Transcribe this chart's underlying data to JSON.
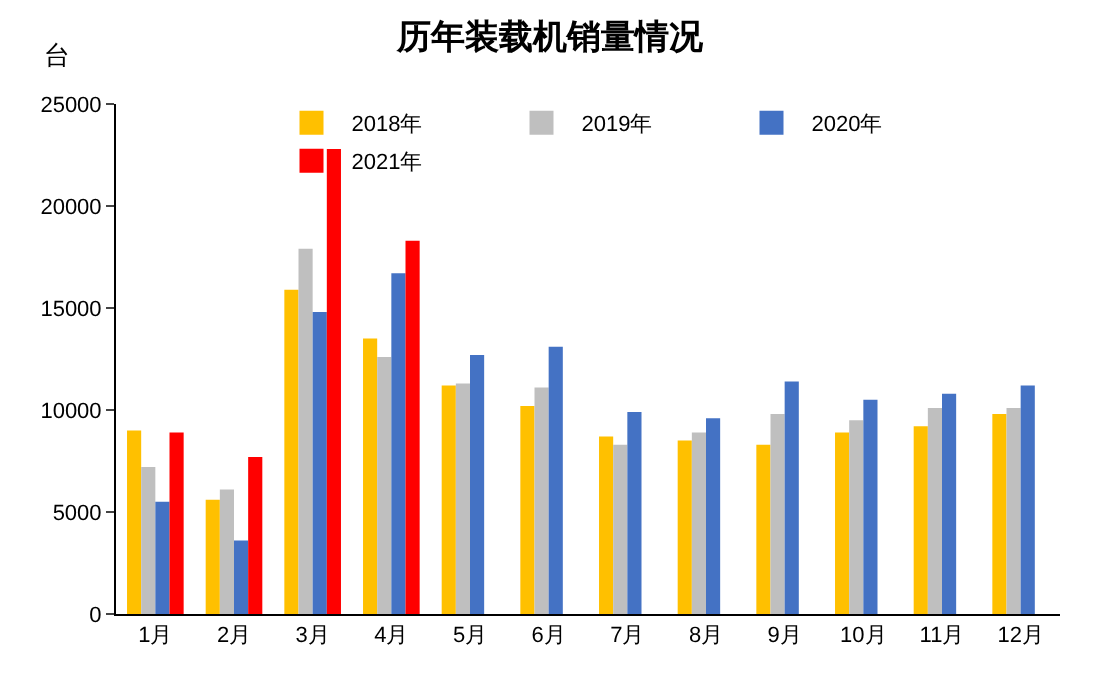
{
  "chart_data": {
    "type": "bar",
    "title": "历年装载机销量情况",
    "ylabel": "台",
    "categories": [
      "1月",
      "2月",
      "3月",
      "4月",
      "5月",
      "6月",
      "7月",
      "8月",
      "9月",
      "10月",
      "11月",
      "12月"
    ],
    "series": [
      {
        "name": "2018年",
        "color": "#ffc000",
        "values": [
          9000,
          5600,
          15900,
          13500,
          11200,
          10200,
          8700,
          8500,
          8300,
          8900,
          9200,
          9800
        ]
      },
      {
        "name": "2019年",
        "color": "#bfbfbf",
        "values": [
          7200,
          6100,
          17900,
          12600,
          11300,
          11100,
          8300,
          8900,
          9800,
          9500,
          10100,
          10100
        ]
      },
      {
        "name": "2020年",
        "color": "#4472c4",
        "values": [
          5500,
          3600,
          14800,
          16700,
          12700,
          13100,
          9900,
          9600,
          11400,
          10500,
          10800,
          11200
        ]
      },
      {
        "name": "2021年",
        "color": "#ff0000",
        "values": [
          8900,
          7700,
          22800,
          18300,
          null,
          null,
          null,
          null,
          null,
          null,
          null,
          null
        ]
      }
    ],
    "ylim": [
      0,
      25000
    ],
    "yticks": [
      0,
      5000,
      10000,
      15000,
      20000,
      25000
    ],
    "legend": "top"
  }
}
